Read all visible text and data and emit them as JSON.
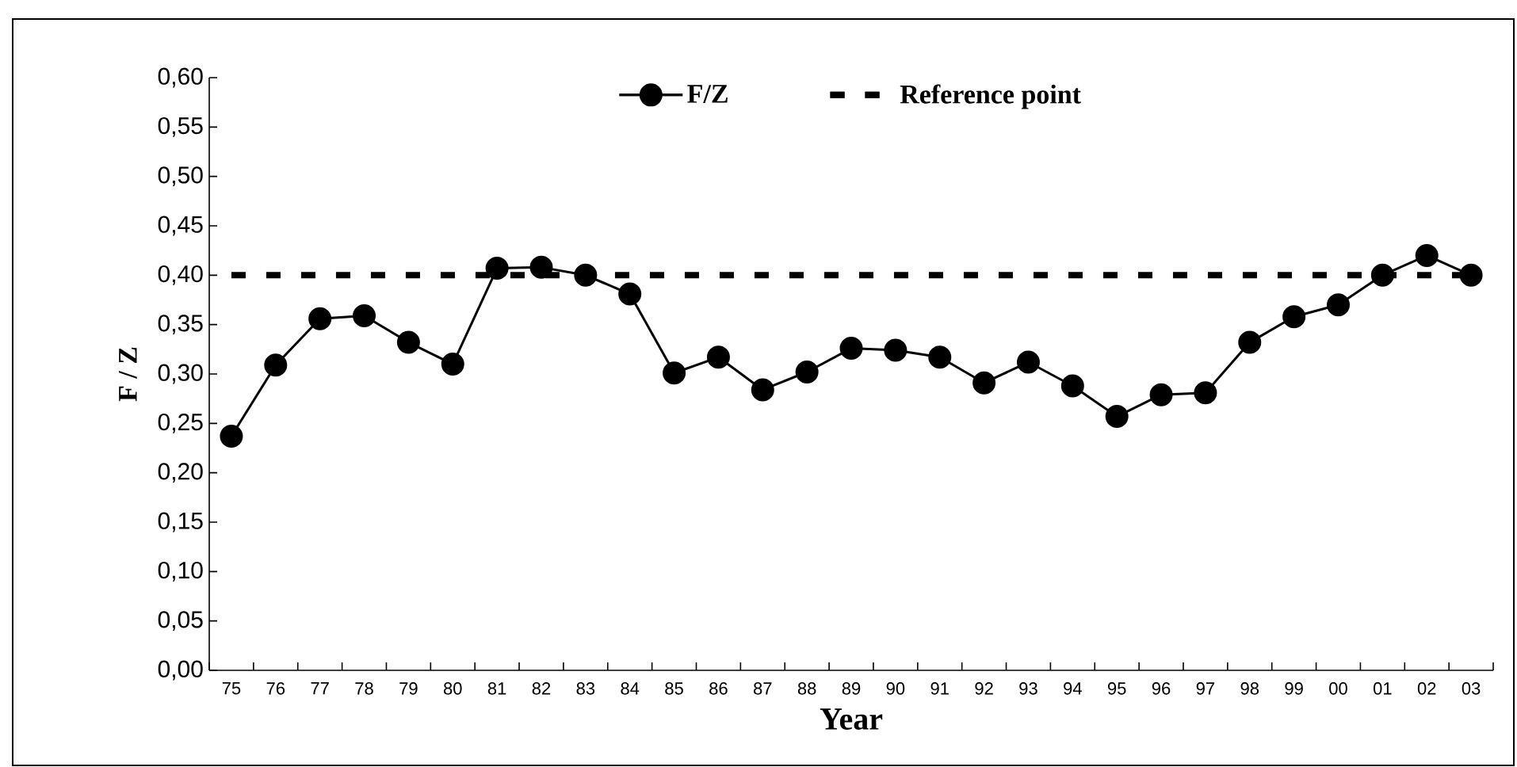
{
  "chart_data": {
    "type": "line",
    "xlabel": "Year",
    "ylabel": "F / Z",
    "categories": [
      "75",
      "76",
      "77",
      "78",
      "79",
      "80",
      "81",
      "82",
      "83",
      "84",
      "85",
      "86",
      "87",
      "88",
      "89",
      "90",
      "91",
      "92",
      "93",
      "94",
      "95",
      "96",
      "97",
      "98",
      "99",
      "00",
      "01",
      "02",
      "03"
    ],
    "series": [
      {
        "name": "F/Z",
        "color": "#000000",
        "values": [
          0.237,
          0.309,
          0.356,
          0.359,
          0.332,
          0.31,
          0.407,
          0.408,
          0.4,
          0.381,
          0.301,
          0.317,
          0.284,
          0.302,
          0.326,
          0.324,
          0.317,
          0.291,
          0.312,
          0.288,
          0.257,
          0.279,
          0.281,
          0.332,
          0.358,
          0.37,
          0.4,
          0.42,
          0.4
        ]
      }
    ],
    "ylim": [
      0,
      0.6
    ],
    "yticks": [
      {
        "value": 0,
        "label": "0,00"
      },
      {
        "value": 0.05,
        "label": "0,05"
      },
      {
        "value": 0.1,
        "label": "0,10"
      },
      {
        "value": 0.15,
        "label": "0,15"
      },
      {
        "value": 0.2,
        "label": "0,20"
      },
      {
        "value": 0.25,
        "label": "0,25"
      },
      {
        "value": 0.3,
        "label": "0,30"
      },
      {
        "value": 0.35,
        "label": "0,35"
      },
      {
        "value": 0.4,
        "label": "0,40"
      },
      {
        "value": 0.45,
        "label": "0,45"
      },
      {
        "value": 0.5,
        "label": "0,50"
      },
      {
        "value": 0.55,
        "label": "0,55"
      },
      {
        "value": 0.6,
        "label": "0,60"
      }
    ],
    "ref_lines": [
      {
        "axis": "y",
        "value": 0.4,
        "label": "Reference point",
        "color": "#000000",
        "line_style": "dashed"
      }
    ],
    "legend": "top",
    "marker": "circle",
    "line_style": "solid"
  }
}
